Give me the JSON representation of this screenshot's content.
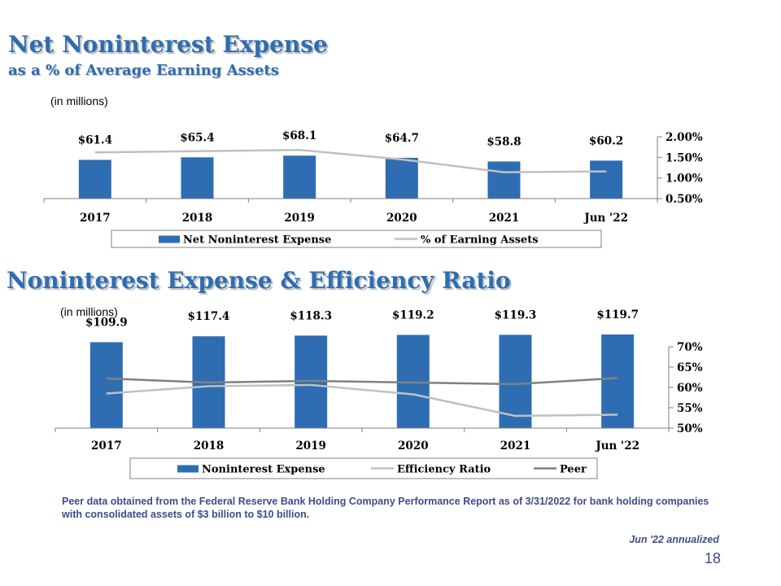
{
  "slide": {
    "title1": "Net Noninterest Expense",
    "title1_sub": "as a % of Average Earning Assets",
    "units1": "(in millions)",
    "title2": "Noninterest Expense & Efficiency Ratio",
    "units2": "(in millions)",
    "footnote": "Peer data obtained from the Federal Reserve Bank Holding Company Performance Report as of 3/31/2022 for bank holding companies with consolidated assets of $3 billion to $10 billion.",
    "annualized_note": "Jun '22 annualized",
    "page_number": "18"
  },
  "colors": {
    "title": "#2e6db2",
    "bar": "#2e6db2",
    "line_light": "#c0c0c0",
    "line_dark": "#808080",
    "note": "#404b8c"
  },
  "chart_data": [
    {
      "type": "bar",
      "categories": [
        "2017",
        "2018",
        "2019",
        "2020",
        "2021",
        "Jun '22"
      ],
      "series": [
        {
          "name": "Net Noninterest Expense",
          "type": "bar",
          "axis": "left",
          "values": [
            61.4,
            65.4,
            68.1,
            64.7,
            58.8,
            60.2
          ],
          "labels": [
            "$61.4",
            "$65.4",
            "$68.1",
            "$64.7",
            "$58.8",
            "$60.2"
          ]
        },
        {
          "name": "% of Earning Assets",
          "type": "line",
          "axis": "right",
          "values": [
            1.62,
            1.65,
            1.68,
            1.45,
            1.14,
            1.16
          ]
        }
      ],
      "y_right_ticks": [
        "2.00%",
        "1.50%",
        "1.00%",
        "0.50%"
      ],
      "y_right_range": [
        0.5,
        2.0
      ],
      "legend_position": "bottom",
      "grid": false
    },
    {
      "type": "bar",
      "categories": [
        "2017",
        "2018",
        "2019",
        "2020",
        "2021",
        "Jun '22"
      ],
      "series": [
        {
          "name": "Noninterest Expense",
          "type": "bar",
          "axis": "left",
          "values": [
            109.9,
            117.4,
            118.3,
            119.2,
            119.3,
            119.7
          ],
          "labels": [
            "$109.9",
            "$117.4",
            "$118.3",
            "$119.2",
            "$119.3",
            "$119.7"
          ]
        },
        {
          "name": "Efficiency Ratio",
          "type": "line",
          "axis": "right",
          "values": [
            58.5,
            60.3,
            60.6,
            58.3,
            53.0,
            53.3
          ]
        },
        {
          "name": "Peer",
          "type": "line",
          "axis": "right",
          "values": [
            62.2,
            61.2,
            61.6,
            61.2,
            60.8,
            62.3
          ]
        }
      ],
      "y_right_ticks": [
        "70%",
        "65%",
        "60%",
        "55%",
        "50%"
      ],
      "y_right_range": [
        50,
        70
      ],
      "legend_position": "bottom",
      "grid": false
    }
  ]
}
